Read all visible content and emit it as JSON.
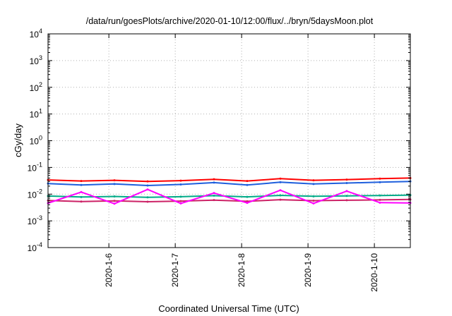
{
  "chart_data": {
    "type": "line",
    "title": "/data/run/goesPlots/archive/2020-01-10/12:00/flux/../bryn/5daysMoon.plot",
    "xlabel": "Coordinated Universal Time (UTC)",
    "ylabel": "cGy/day",
    "xlim": [
      "2020-01-05T02:00",
      "2020-01-10T13:00"
    ],
    "ylim": [
      0.0001,
      10000
    ],
    "yscale": "log",
    "grid": true,
    "x_ticks": [
      {
        "value": "2020-01-06T00:00",
        "label": "2020-1-6"
      },
      {
        "value": "2020-01-07T00:00",
        "label": "2020-1-7"
      },
      {
        "value": "2020-01-08T00:00",
        "label": "2020-1-8"
      },
      {
        "value": "2020-01-09T00:00",
        "label": "2020-1-9"
      },
      {
        "value": "2020-01-10T00:00",
        "label": "2020-1-10"
      }
    ],
    "y_ticks": [
      {
        "value": 0.0001,
        "base": "10",
        "exp": "-4"
      },
      {
        "value": 0.001,
        "base": "10",
        "exp": "-3"
      },
      {
        "value": 0.01,
        "base": "10",
        "exp": "-2"
      },
      {
        "value": 0.1,
        "base": "10",
        "exp": "-1"
      },
      {
        "value": 1,
        "base": "10",
        "exp": "0"
      },
      {
        "value": 10,
        "base": "10",
        "exp": "1"
      },
      {
        "value": 100,
        "base": "10",
        "exp": "2"
      },
      {
        "value": 1000,
        "base": "10",
        "exp": "3"
      },
      {
        "value": 10000,
        "base": "10",
        "exp": "4"
      }
    ],
    "series": [
      {
        "color": "#ff0000",
        "x": [
          "2020-01-05T02:00",
          "2020-01-05T14:00",
          "2020-01-06T02:00",
          "2020-01-06T14:00",
          "2020-01-07T02:00",
          "2020-01-07T14:00",
          "2020-01-08T02:00",
          "2020-01-08T14:00",
          "2020-01-09T02:00",
          "2020-01-09T14:00",
          "2020-01-10T02:00",
          "2020-01-10T13:00"
        ],
        "values": [
          0.034,
          0.031,
          0.033,
          0.03,
          0.032,
          0.036,
          0.031,
          0.038,
          0.033,
          0.035,
          0.038,
          0.04
        ]
      },
      {
        "color": "#1f5fdd",
        "x": [
          "2020-01-05T02:00",
          "2020-01-05T14:00",
          "2020-01-06T02:00",
          "2020-01-06T14:00",
          "2020-01-07T02:00",
          "2020-01-07T14:00",
          "2020-01-08T02:00",
          "2020-01-08T14:00",
          "2020-01-09T02:00",
          "2020-01-09T14:00",
          "2020-01-10T02:00",
          "2020-01-10T13:00"
        ],
        "values": [
          0.025,
          0.022,
          0.024,
          0.021,
          0.023,
          0.027,
          0.022,
          0.028,
          0.024,
          0.026,
          0.028,
          0.03
        ]
      },
      {
        "color": "#00aa88",
        "x": [
          "2020-01-05T02:00",
          "2020-01-05T14:00",
          "2020-01-06T02:00",
          "2020-01-06T14:00",
          "2020-01-07T02:00",
          "2020-01-07T14:00",
          "2020-01-08T02:00",
          "2020-01-08T14:00",
          "2020-01-09T02:00",
          "2020-01-09T14:00",
          "2020-01-10T02:00",
          "2020-01-10T13:00"
        ],
        "values": [
          0.0085,
          0.0078,
          0.0082,
          0.0076,
          0.008,
          0.0088,
          0.0079,
          0.009,
          0.0083,
          0.0086,
          0.0089,
          0.0092
        ]
      },
      {
        "color": "#cc2266",
        "x": [
          "2020-01-05T02:00",
          "2020-01-05T14:00",
          "2020-01-06T02:00",
          "2020-01-06T14:00",
          "2020-01-07T02:00",
          "2020-01-07T14:00",
          "2020-01-08T02:00",
          "2020-01-08T14:00",
          "2020-01-09T02:00",
          "2020-01-09T14:00",
          "2020-01-10T02:00",
          "2020-01-10T13:00"
        ],
        "values": [
          0.0058,
          0.0053,
          0.0056,
          0.0052,
          0.0055,
          0.006,
          0.0054,
          0.0062,
          0.0057,
          0.0059,
          0.0061,
          0.0063
        ]
      },
      {
        "color": "#ff00ff",
        "x": [
          "2020-01-05T02:00",
          "2020-01-05T14:00",
          "2020-01-06T02:00",
          "2020-01-06T14:00",
          "2020-01-07T02:00",
          "2020-01-07T14:00",
          "2020-01-08T02:00",
          "2020-01-08T14:00",
          "2020-01-09T02:00",
          "2020-01-09T14:00",
          "2020-01-10T02:00",
          "2020-01-10T13:00"
        ],
        "values": [
          0.0046,
          0.012,
          0.0044,
          0.015,
          0.0045,
          0.011,
          0.0047,
          0.014,
          0.0045,
          0.013,
          0.0048,
          0.0047
        ]
      }
    ]
  }
}
